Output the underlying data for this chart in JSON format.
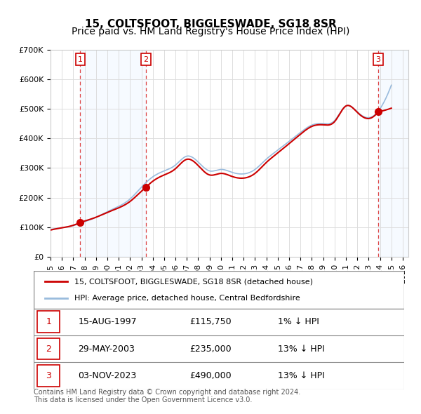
{
  "title": "15, COLTSFOOT, BIGGLESWADE, SG18 8SR",
  "subtitle": "Price paid vs. HM Land Registry's House Price Index (HPI)",
  "xlabel": "",
  "ylabel": "",
  "ylim": [
    0,
    700000
  ],
  "yticks": [
    0,
    100000,
    200000,
    300000,
    400000,
    500000,
    600000,
    700000
  ],
  "ytick_labels": [
    "£0",
    "£100K",
    "£200K",
    "£300K",
    "£400K",
    "£500K",
    "£600K",
    "£700K"
  ],
  "xlim_start": 1995.0,
  "xlim_end": 2026.5,
  "background_color": "#ffffff",
  "plot_bg_color": "#ffffff",
  "grid_color": "#dddddd",
  "red_line_color": "#cc0000",
  "blue_line_color": "#99bbdd",
  "sale_marker_color": "#cc0000",
  "dashed_line_color": "#dd4444",
  "shade_color": "#ddeeff",
  "transactions": [
    {
      "date_float": 1997.62,
      "price": 115750,
      "label": "1"
    },
    {
      "date_float": 2003.41,
      "price": 235000,
      "label": "2"
    },
    {
      "date_float": 2023.84,
      "price": 490000,
      "label": "3"
    }
  ],
  "table_rows": [
    {
      "num": "1",
      "date": "15-AUG-1997",
      "price": "£115,750",
      "pct": "1% ↓ HPI"
    },
    {
      "num": "2",
      "date": "29-MAY-2003",
      "price": "£235,000",
      "pct": "13% ↓ HPI"
    },
    {
      "num": "3",
      "date": "03-NOV-2023",
      "price": "£490,000",
      "pct": "13% ↓ HPI"
    }
  ],
  "legend_red_label": "15, COLTSFOOT, BIGGLESWADE, SG18 8SR (detached house)",
  "legend_blue_label": "HPI: Average price, detached house, Central Bedfordshire",
  "footnote": "Contains HM Land Registry data © Crown copyright and database right 2024.\nThis data is licensed under the Open Government Licence v3.0.",
  "title_fontsize": 11,
  "subtitle_fontsize": 10,
  "tick_fontsize": 8,
  "hpi_data_years": [
    1995,
    1996,
    1997,
    1998,
    1999,
    2000,
    2001,
    2002,
    2003,
    2004,
    2005,
    2006,
    2007,
    2008,
    2009,
    2010,
    2011,
    2012,
    2013,
    2014,
    2015,
    2016,
    2017,
    2018,
    2019,
    2020,
    2021,
    2022,
    2023,
    2024,
    2025
  ],
  "hpi_data_values": [
    92000,
    98000,
    105000,
    118000,
    133000,
    152000,
    170000,
    195000,
    235000,
    270000,
    290000,
    310000,
    340000,
    320000,
    290000,
    295000,
    285000,
    280000,
    295000,
    330000,
    360000,
    390000,
    420000,
    445000,
    450000,
    460000,
    510000,
    490000,
    470000,
    500000,
    580000
  ]
}
